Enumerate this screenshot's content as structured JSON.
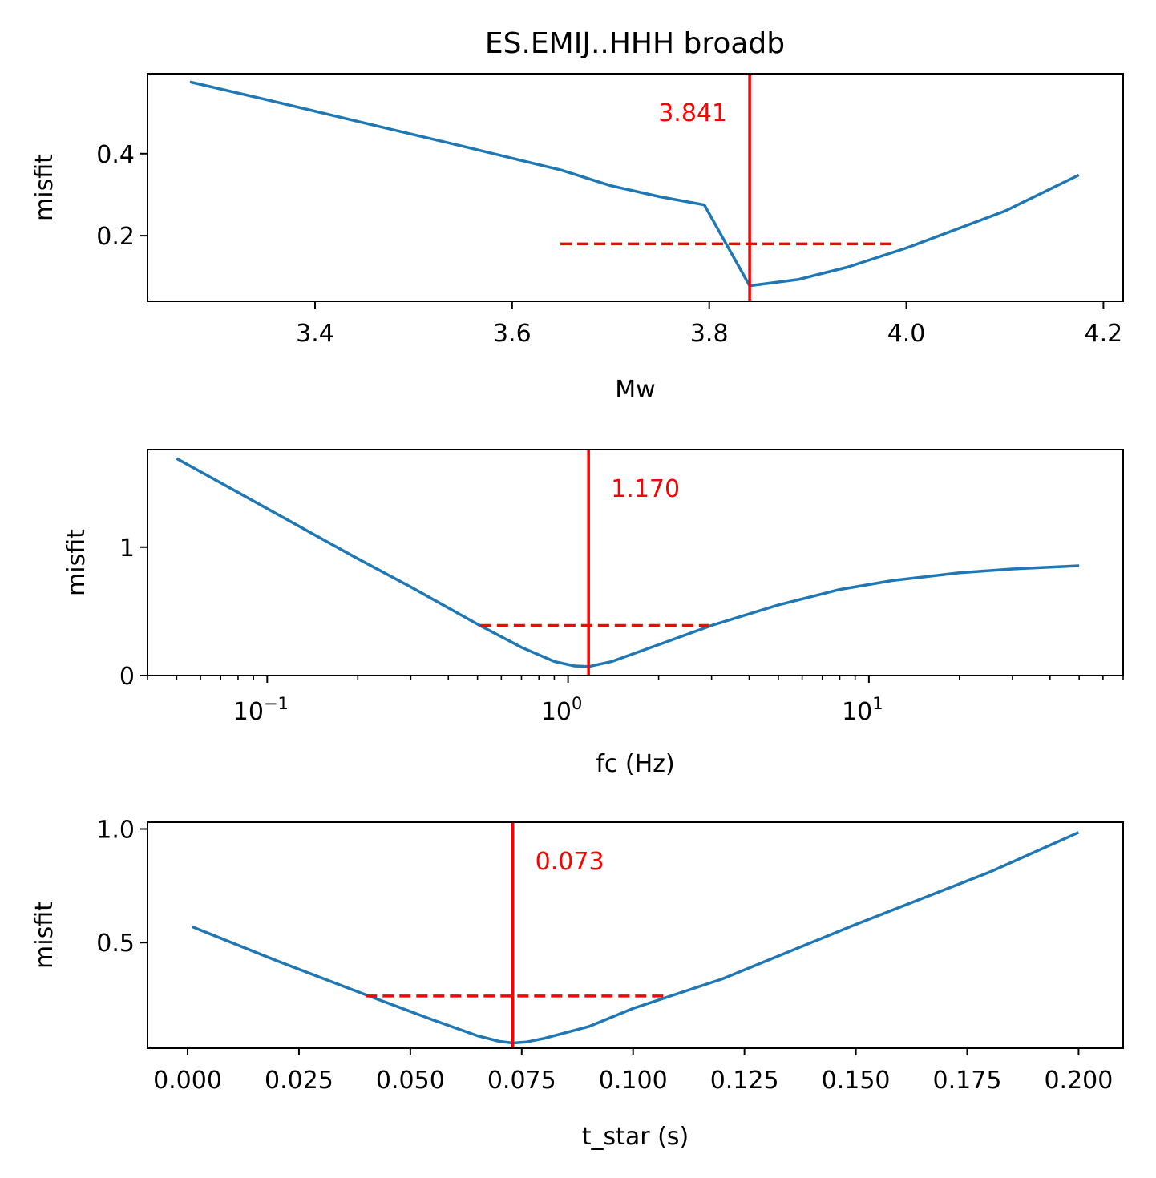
{
  "figure_title": "ES.EMIJ..HHH broadb",
  "colors": {
    "curve": "#1f77b4",
    "marker": "#ff0000",
    "axes": "#000000"
  },
  "chart_data": [
    {
      "type": "line",
      "title": "ES.EMIJ..HHH broadb",
      "xlabel": "Mw",
      "ylabel": "misfit",
      "xscale": "linear",
      "xlim": [
        3.23,
        4.22
      ],
      "ylim": [
        0.04,
        0.595
      ],
      "xticks": [
        3.4,
        3.6,
        3.8,
        4.0,
        4.2
      ],
      "xtick_labels": [
        "3.4",
        "3.6",
        "3.8",
        "4.0",
        "4.2"
      ],
      "yticks": [
        0.2,
        0.4
      ],
      "ytick_labels": [
        "0.2",
        "0.4"
      ],
      "series": [
        {
          "x": [
            3.273,
            3.35,
            3.45,
            3.55,
            3.65,
            3.7,
            3.75,
            3.795,
            3.841,
            3.89,
            3.94,
            4.0,
            4.1,
            4.175
          ],
          "y": [
            0.575,
            0.532,
            0.475,
            0.418,
            0.36,
            0.322,
            0.295,
            0.275,
            0.078,
            0.093,
            0.123,
            0.17,
            0.26,
            0.348
          ]
        }
      ],
      "best_value": 3.841,
      "best_label": "3.841",
      "uncertainty": {
        "x_min": 3.649,
        "x_max": 3.985,
        "y": 0.18
      }
    },
    {
      "type": "line",
      "xlabel": "fc (Hz)",
      "ylabel": "misfit",
      "xscale": "log",
      "xlim": [
        0.04,
        70
      ],
      "ylim": [
        0,
        1.76
      ],
      "xticks": [
        0.1,
        1,
        10
      ],
      "xtick_labels": [
        {
          "base": "10",
          "exp": "−1"
        },
        {
          "base": "10",
          "exp": "0"
        },
        {
          "base": "10",
          "exp": "1"
        }
      ],
      "yticks": [
        0,
        1
      ],
      "ytick_labels": [
        "0",
        "1"
      ],
      "series": [
        {
          "x": [
            0.05,
            0.1,
            0.2,
            0.3,
            0.5,
            0.7,
            0.9,
            1.05,
            1.17,
            1.4,
            2.0,
            3.0,
            5.0,
            8.0,
            12.0,
            20.0,
            30.0,
            50.0
          ],
          "y": [
            1.69,
            1.3,
            0.91,
            0.69,
            0.4,
            0.22,
            0.11,
            0.075,
            0.07,
            0.11,
            0.24,
            0.39,
            0.55,
            0.67,
            0.74,
            0.8,
            0.83,
            0.855
          ]
        }
      ],
      "best_value": 1.17,
      "best_label": "1.170",
      "uncertainty": {
        "x_min": 0.51,
        "x_max": 2.95,
        "y": 0.39
      }
    },
    {
      "type": "line",
      "xlabel": "t_star (s)",
      "ylabel": "misfit",
      "xscale": "linear",
      "xlim": [
        -0.009,
        0.21
      ],
      "ylim": [
        0.035,
        1.03
      ],
      "xticks": [
        0.0,
        0.025,
        0.05,
        0.075,
        0.1,
        0.125,
        0.15,
        0.175,
        0.2
      ],
      "xtick_labels": [
        "0.000",
        "0.025",
        "0.050",
        "0.075",
        "0.100",
        "0.125",
        "0.150",
        "0.175",
        "0.200"
      ],
      "yticks": [
        0.5,
        1.0
      ],
      "ytick_labels": [
        "0.5",
        "1.0"
      ],
      "series": [
        {
          "x": [
            0.001,
            0.02,
            0.04,
            0.055,
            0.065,
            0.07,
            0.073,
            0.076,
            0.08,
            0.09,
            0.1,
            0.12,
            0.15,
            0.18,
            0.2
          ],
          "y": [
            0.57,
            0.42,
            0.27,
            0.16,
            0.09,
            0.065,
            0.058,
            0.062,
            0.078,
            0.13,
            0.21,
            0.34,
            0.58,
            0.81,
            0.985
          ]
        }
      ],
      "best_value": 0.073,
      "best_label": "0.073",
      "uncertainty": {
        "x_min": 0.04,
        "x_max": 0.107,
        "y": 0.265
      }
    }
  ]
}
